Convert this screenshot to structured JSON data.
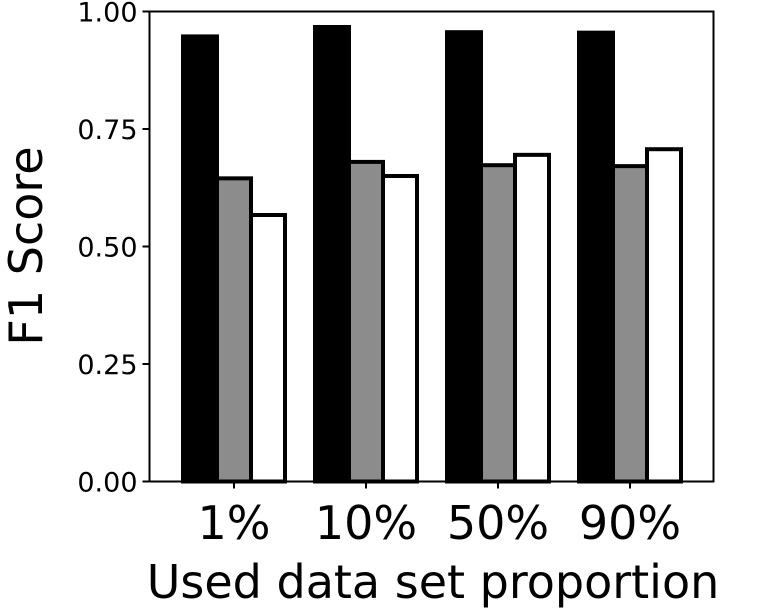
{
  "chart_data": {
    "type": "bar",
    "title": "",
    "xlabel": "Used data set proportion",
    "ylabel": "F1 Score",
    "categories": [
      "1%",
      "10%",
      "50%",
      "90%"
    ],
    "series": [
      {
        "values": [
          0.947,
          0.967,
          0.956,
          0.955
        ],
        "color": "#000000"
      },
      {
        "values": [
          0.645,
          0.68,
          0.673,
          0.671
        ],
        "color": "#8c8c8c"
      },
      {
        "values": [
          0.567,
          0.65,
          0.695,
          0.707
        ],
        "color": "#ffffff"
      }
    ],
    "ylim": [
      0,
      1.0
    ],
    "yticks": [
      0.0,
      0.25,
      0.5,
      0.75,
      1.0
    ],
    "ytick_labels": [
      "0.00",
      "0.25",
      "0.50",
      "0.75",
      "1.00"
    ],
    "grid": false,
    "legend": null
  }
}
